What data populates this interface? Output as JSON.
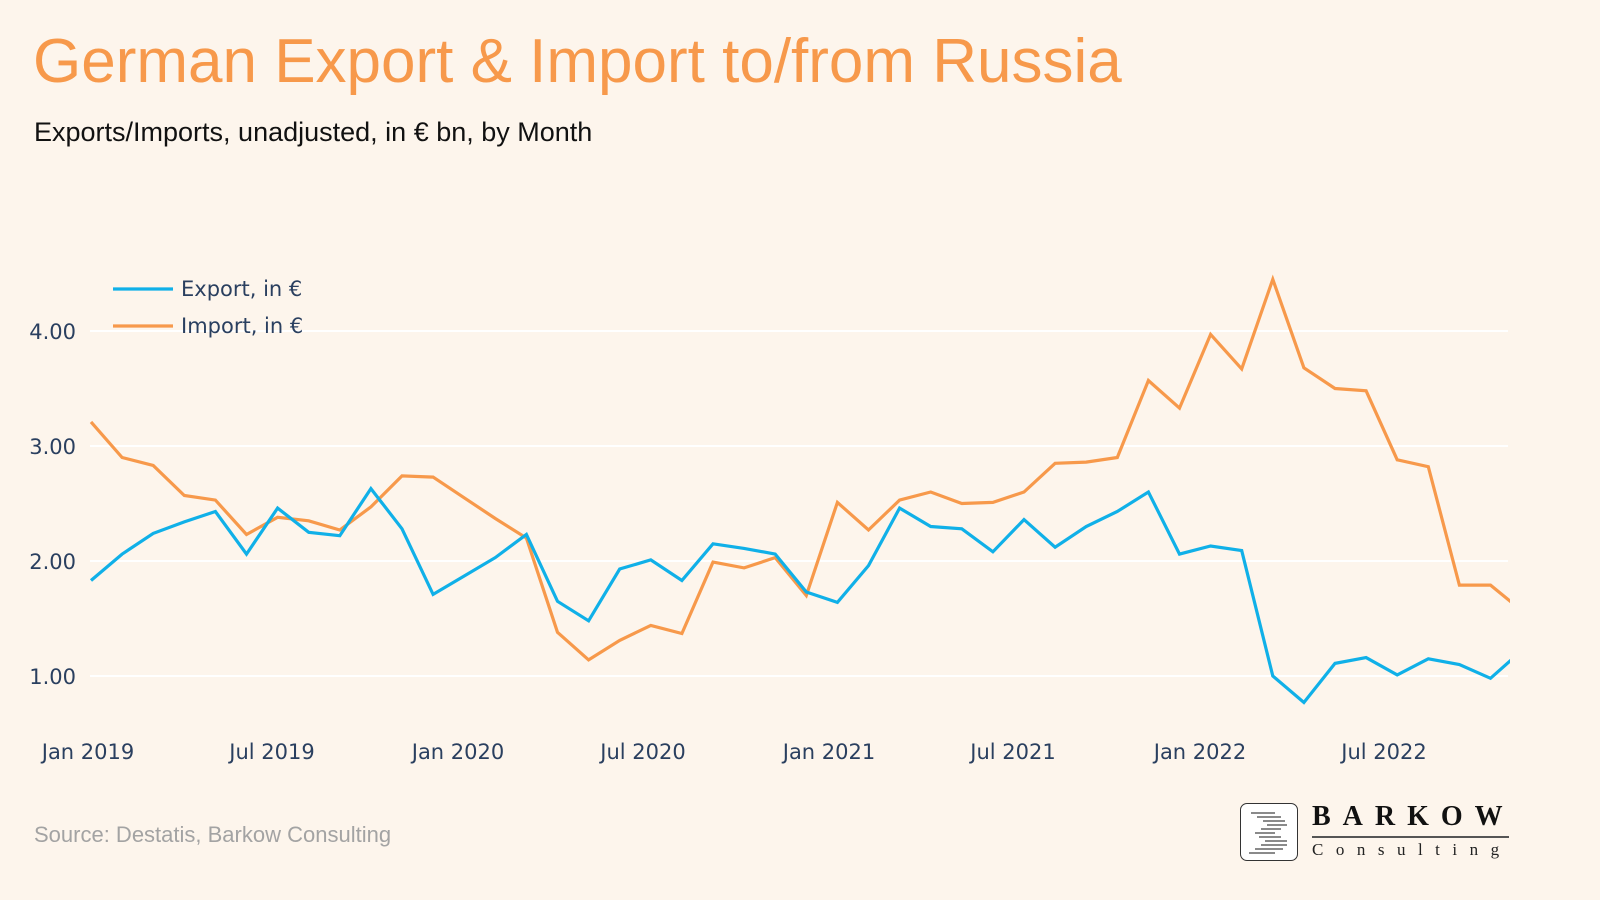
{
  "header": {
    "title": "German Export & Import to/from Russia",
    "subtitle": "Exports/Imports, unadjusted, in € bn, by Month"
  },
  "legend": {
    "items": [
      {
        "label": "Export, in €",
        "color": "#10b0e8"
      },
      {
        "label": "Import, in €",
        "color": "#f7994b"
      }
    ]
  },
  "footer": {
    "source": "Source: Destatis, Barkow Consulting",
    "logo_name": "BARKOW",
    "logo_sub": "Consulting"
  },
  "colors": {
    "background": "#fdf5ec",
    "title": "#f7994b",
    "export": "#10b0e8",
    "import": "#f7994b",
    "grid": "#ffffff",
    "axis_text": "#2a3f5f"
  },
  "chart_data": {
    "type": "line",
    "title": "German Export & Import to/from Russia",
    "subtitle": "Exports/Imports, unadjusted, in € bn, by Month",
    "xlabel": "",
    "ylabel": "",
    "ylim": [
      0.6,
      4.6
    ],
    "yticks": [
      1.0,
      2.0,
      3.0,
      4.0
    ],
    "ytick_labels": [
      "1.00",
      "2.00",
      "3.00",
      "4.00"
    ],
    "xtick_labels": [
      "Jan 2019",
      "Jul 2019",
      "Jan 2020",
      "Jul 2020",
      "Jan 2021",
      "Jul 2021",
      "Jan 2022",
      "Jul 2022"
    ],
    "grid": true,
    "legend_position": "top-left",
    "x": [
      "2019-01",
      "2019-02",
      "2019-03",
      "2019-04",
      "2019-05",
      "2019-06",
      "2019-07",
      "2019-08",
      "2019-09",
      "2019-10",
      "2019-11",
      "2019-12",
      "2020-01",
      "2020-02",
      "2020-03",
      "2020-04",
      "2020-05",
      "2020-06",
      "2020-07",
      "2020-08",
      "2020-09",
      "2020-10",
      "2020-11",
      "2020-12",
      "2021-01",
      "2021-02",
      "2021-03",
      "2021-04",
      "2021-05",
      "2021-06",
      "2021-07",
      "2021-08",
      "2021-09",
      "2021-10",
      "2021-11",
      "2021-12",
      "2022-01",
      "2022-02",
      "2022-03",
      "2022-04",
      "2022-05",
      "2022-06",
      "2022-07",
      "2022-08",
      "2022-09",
      "2022-10",
      "2022-11"
    ],
    "series": [
      {
        "name": "Export, in €",
        "color": "#10b0e8",
        "values": [
          1.83,
          2.06,
          2.24,
          2.34,
          2.43,
          2.06,
          2.46,
          2.25,
          2.22,
          2.63,
          2.28,
          1.71,
          1.87,
          2.03,
          2.23,
          1.65,
          1.48,
          1.93,
          2.01,
          1.83,
          2.15,
          2.11,
          2.06,
          1.73,
          1.64,
          1.96,
          2.46,
          2.3,
          2.28,
          2.08,
          2.36,
          2.12,
          2.3,
          2.43,
          2.6,
          2.06,
          2.13,
          2.09,
          1.0,
          0.77,
          1.11,
          1.16,
          1.01,
          1.15,
          1.1,
          0.98,
          1.22
        ]
      },
      {
        "name": "Import, in €",
        "color": "#f7994b",
        "values": [
          3.21,
          2.9,
          2.83,
          2.57,
          2.53,
          2.23,
          2.38,
          2.35,
          2.27,
          2.47,
          2.74,
          2.73,
          2.55,
          2.37,
          2.2,
          1.38,
          1.14,
          1.31,
          1.44,
          1.37,
          1.99,
          1.94,
          2.03,
          1.7,
          2.51,
          2.27,
          2.53,
          2.6,
          2.5,
          2.51,
          2.6,
          2.85,
          2.86,
          2.9,
          3.57,
          3.33,
          3.97,
          3.67,
          4.45,
          3.68,
          3.5,
          3.48,
          2.88,
          2.82,
          1.79,
          1.79,
          1.57
        ]
      }
    ]
  }
}
